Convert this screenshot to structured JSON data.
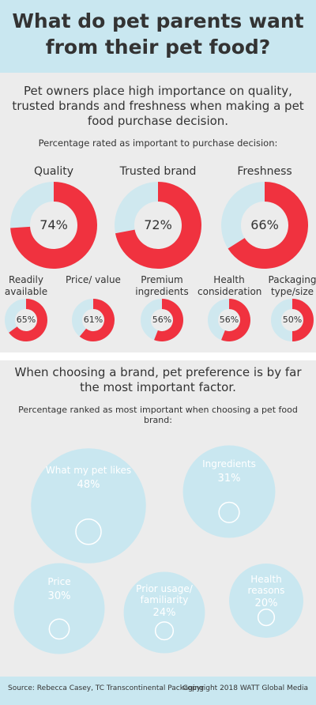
{
  "title": "What do pet parents want from their pet food?",
  "chart_data": [
    {
      "type": "donut",
      "subtitle": "Pet owners place high importance on quality, trusted brands and freshness when making a pet food purchase decision.",
      "title": "Percentage rated as important to purchase decision:",
      "categories": [
        "Quality",
        "Trusted brand",
        "Freshness",
        "Readily available",
        "Price/ value",
        "Premium ingredients",
        "Health consideration",
        "Packaging type/size"
      ],
      "values": [
        74,
        72,
        66,
        65,
        61,
        56,
        56,
        50
      ],
      "value_labels": [
        "74%",
        "72%",
        "66%",
        "65%",
        "61%",
        "56%",
        "56%",
        "50%"
      ],
      "color": "#f0323f",
      "rest_color": "#cfe8ef"
    },
    {
      "type": "bubble",
      "subtitle": "When choosing a brand, pet preference is by far the most important factor.",
      "title": "Percentage ranked as most important when choosing a pet food brand:",
      "categories": [
        "What my pet likes",
        "Ingredients",
        "Price",
        "Prior usage/ familiarity",
        "Health reasons"
      ],
      "values": [
        48,
        31,
        30,
        24,
        20
      ],
      "value_labels": [
        "48%",
        "31%",
        "30%",
        "24%",
        "20%"
      ],
      "color": "#c9e7f0"
    }
  ],
  "source": "Source: Rebecca Casey, TC Transcontinental Packaging",
  "copyright": "Copyright 2018 WATT Global Media"
}
